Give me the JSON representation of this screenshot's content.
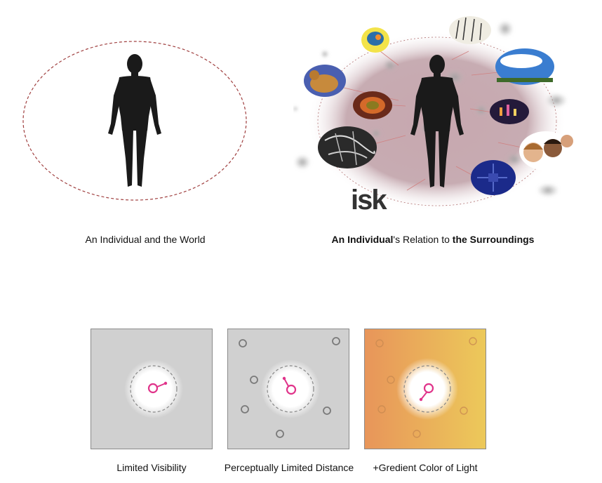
{
  "top": {
    "left_caption": "An Individual and the World",
    "right_caption": {
      "part1": "An Individual",
      "part2": "'s Relation to ",
      "part3": "the Surroundings"
    },
    "cutoff_text": "isk",
    "icons": {
      "person": "person-silhouette-icon",
      "world_boundary": "dashed-ellipse-boundary"
    },
    "colors": {
      "boundary": "#a04040",
      "aura": "#b09098",
      "silhouette": "#1a1a1a"
    }
  },
  "bottom": {
    "panels": [
      {
        "caption": "Limited Visibility",
        "background": "#d0d0d0"
      },
      {
        "caption": "Perceptually Limited Distance",
        "background": "#d0d0d0"
      },
      {
        "caption": "+Gredient Color of Light",
        "gradient_from": "#e8955a",
        "gradient_to": "#ecc95a"
      }
    ],
    "colors": {
      "agent": "#e0338a",
      "object": "#7a7a7a",
      "light": "#ffffff"
    }
  }
}
